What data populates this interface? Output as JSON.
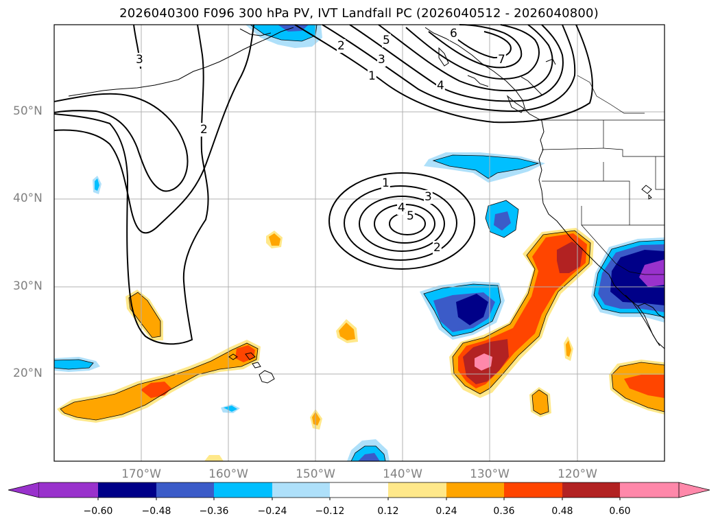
{
  "title": "2026040300 F096 300 hPa PV, IVT Landfall PC (2026040512 - 2026040800)",
  "map": {
    "lat_labels": [
      "50°N",
      "40°N",
      "30°N",
      "20°N"
    ],
    "lon_labels": [
      "170°W",
      "160°W",
      "150°W",
      "140°W",
      "130°W",
      "120°W"
    ],
    "extent": {
      "lon_min": -180,
      "lon_max": -110,
      "lat_min": 10,
      "lat_max": 60
    },
    "pv_contour_labels": [
      "3",
      "2",
      "2",
      "5",
      "3",
      "1",
      "4",
      "6",
      "7",
      "1",
      "3",
      "4",
      "5",
      "2"
    ]
  },
  "colorbar": {
    "ticks": [
      "−0.60",
      "−0.48",
      "−0.36",
      "−0.24",
      "−0.12",
      "0.12",
      "0.24",
      "0.36",
      "0.48",
      "0.60"
    ],
    "colors": [
      "#9932cc",
      "#000088",
      "#3b5bc8",
      "#00bfff",
      "#aee0fa",
      "#ffffff",
      "#ffe88a",
      "#ffa500",
      "#ff4500",
      "#b22222",
      "#ff88aa"
    ]
  }
}
